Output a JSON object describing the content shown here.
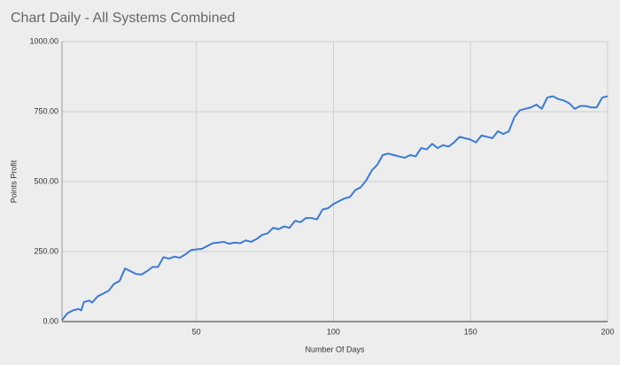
{
  "chart_data": {
    "type": "line",
    "title": "Chart Daily - All Systems Combined",
    "x_label": "Number Of Days",
    "y_label": "Points Profit",
    "x": [
      1,
      3,
      5,
      7,
      8,
      9,
      11,
      12,
      14,
      16,
      18,
      20,
      22,
      24,
      26,
      28,
      30,
      32,
      34,
      36,
      38,
      40,
      42,
      44,
      46,
      48,
      50,
      52,
      54,
      56,
      58,
      60,
      62,
      64,
      66,
      68,
      70,
      72,
      74,
      76,
      78,
      80,
      82,
      84,
      86,
      88,
      90,
      92,
      94,
      96,
      98,
      100,
      102,
      104,
      106,
      108,
      110,
      112,
      114,
      116,
      118,
      120,
      122,
      124,
      126,
      128,
      130,
      132,
      134,
      136,
      138,
      140,
      142,
      144,
      146,
      148,
      150,
      152,
      154,
      156,
      158,
      160,
      162,
      164,
      166,
      168,
      170,
      172,
      174,
      176,
      178,
      180,
      182,
      184,
      186,
      188,
      190,
      192,
      194,
      196,
      198,
      200
    ],
    "series": [
      {
        "name": "Points Profit",
        "color": "#3a7bd5",
        "values": [
          5,
          30,
          40,
          45,
          40,
          70,
          75,
          68,
          90,
          100,
          110,
          135,
          145,
          190,
          180,
          170,
          168,
          180,
          195,
          195,
          230,
          225,
          232,
          228,
          240,
          255,
          258,
          260,
          270,
          280,
          282,
          285,
          278,
          282,
          280,
          290,
          285,
          295,
          310,
          315,
          335,
          330,
          340,
          335,
          360,
          355,
          370,
          370,
          365,
          400,
          405,
          420,
          430,
          440,
          445,
          470,
          480,
          505,
          540,
          560,
          595,
          600,
          595,
          590,
          585,
          595,
          590,
          620,
          615,
          635,
          620,
          630,
          625,
          640,
          660,
          655,
          650,
          640,
          665,
          660,
          655,
          680,
          670,
          680,
          730,
          755,
          760,
          765,
          775,
          760,
          800,
          805,
          795,
          790,
          780,
          760,
          770,
          770,
          765,
          765,
          800,
          805
        ]
      }
    ],
    "xlim": [
      1,
      200
    ],
    "xticks": [
      50,
      100,
      150,
      200
    ],
    "ylim": [
      0,
      1000
    ],
    "yticks": [
      {
        "value": 0,
        "label": "0.00"
      },
      {
        "value": 250,
        "label": "250.00"
      },
      {
        "value": 500,
        "label": "500.00"
      },
      {
        "value": 750,
        "label": "750.00"
      },
      {
        "value": 1000,
        "label": "1000.00"
      }
    ],
    "grid": true
  }
}
